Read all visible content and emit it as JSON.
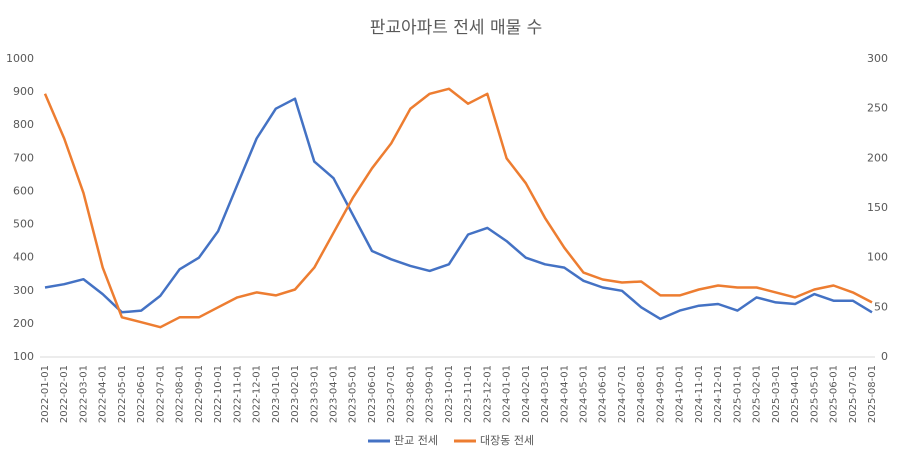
{
  "chart_data": {
    "type": "line",
    "title": "판교아파트 전세 매물 수",
    "categories": [
      "2022-01-01",
      "2022-02-01",
      "2022-03-01",
      "2022-04-01",
      "2022-05-01",
      "2022-06-01",
      "2022-07-01",
      "2022-08-01",
      "2022-09-01",
      "2022-10-01",
      "2022-11-01",
      "2022-12-01",
      "2023-01-01",
      "2023-02-01",
      "2023-03-01",
      "2023-04-01",
      "2023-05-01",
      "2023-06-01",
      "2023-07-01",
      "2023-08-01",
      "2023-09-01",
      "2023-10-01",
      "2023-11-01",
      "2023-12-01",
      "2024-01-01",
      "2024-02-01",
      "2024-03-01",
      "2024-04-01",
      "2024-05-01",
      "2024-06-01",
      "2024-07-01",
      "2024-08-01",
      "2024-09-01",
      "2024-10-01",
      "2024-11-01",
      "2024-12-01",
      "2025-01-01",
      "2025-02-01",
      "2025-03-01",
      "2025-04-01",
      "2025-05-01",
      "2025-06-01",
      "2025-07-01",
      "2025-08-01"
    ],
    "series": [
      {
        "name": "판교 전세",
        "color": "#4472c4",
        "values": [
          310,
          320,
          335,
          290,
          235,
          240,
          285,
          365,
          400,
          480,
          620,
          760,
          850,
          880,
          690,
          640,
          530,
          420,
          395,
          375,
          360,
          380,
          470,
          490,
          450,
          400,
          380,
          370,
          330,
          310,
          300,
          250,
          215,
          240,
          255,
          260,
          240,
          280,
          265,
          260,
          290,
          270,
          270,
          235
        ]
      },
      {
        "name": "대장동 전세",
        "color": "#ed7d31",
        "axis": "y2",
        "values": [
          265,
          220,
          165,
          90,
          40,
          35,
          30,
          40,
          40,
          50,
          60,
          65,
          62,
          68,
          90,
          125,
          160,
          190,
          215,
          250,
          265,
          270,
          255,
          265,
          200,
          175,
          140,
          110,
          85,
          78,
          75,
          76,
          62,
          62,
          68,
          72,
          70,
          70,
          65,
          60,
          68,
          72,
          65,
          55
        ]
      }
    ],
    "ylim": [
      100,
      1000
    ],
    "yticks": [
      100,
      200,
      300,
      400,
      500,
      600,
      700,
      800,
      900,
      1000
    ],
    "y2lim": [
      0,
      300
    ],
    "y2ticks": [
      0,
      50,
      100,
      150,
      200,
      250,
      300
    ],
    "grid": false,
    "legend": "bottom"
  }
}
